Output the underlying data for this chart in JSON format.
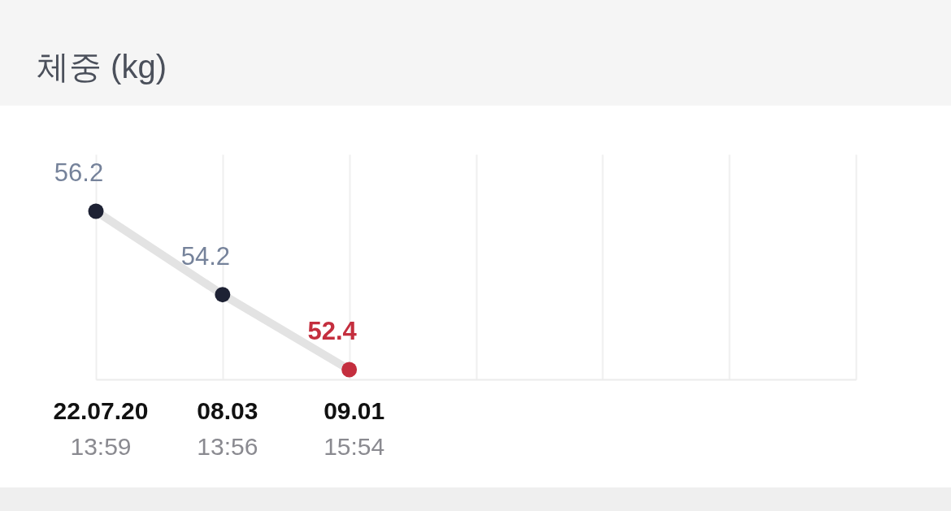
{
  "chart_data": {
    "type": "line",
    "title": "체중 (kg)",
    "categories": [
      "22.07.20\n13:59",
      "08.03\n13:56",
      "09.01\n15:54",
      null,
      null,
      null,
      null
    ],
    "series": [
      {
        "color": "#e3e3e3",
        "colors": [
          "#1e2234",
          "#1e2234",
          "#c42e3e",
          null,
          null,
          null,
          null
        ],
        "values": [
          56.2,
          54.2,
          52.4,
          null,
          null,
          null,
          null
        ]
      }
    ],
    "data_labels": true,
    "marker": "circle",
    "line_style": "solid",
    "grid": "x",
    "tick_labels": "x"
  }
}
